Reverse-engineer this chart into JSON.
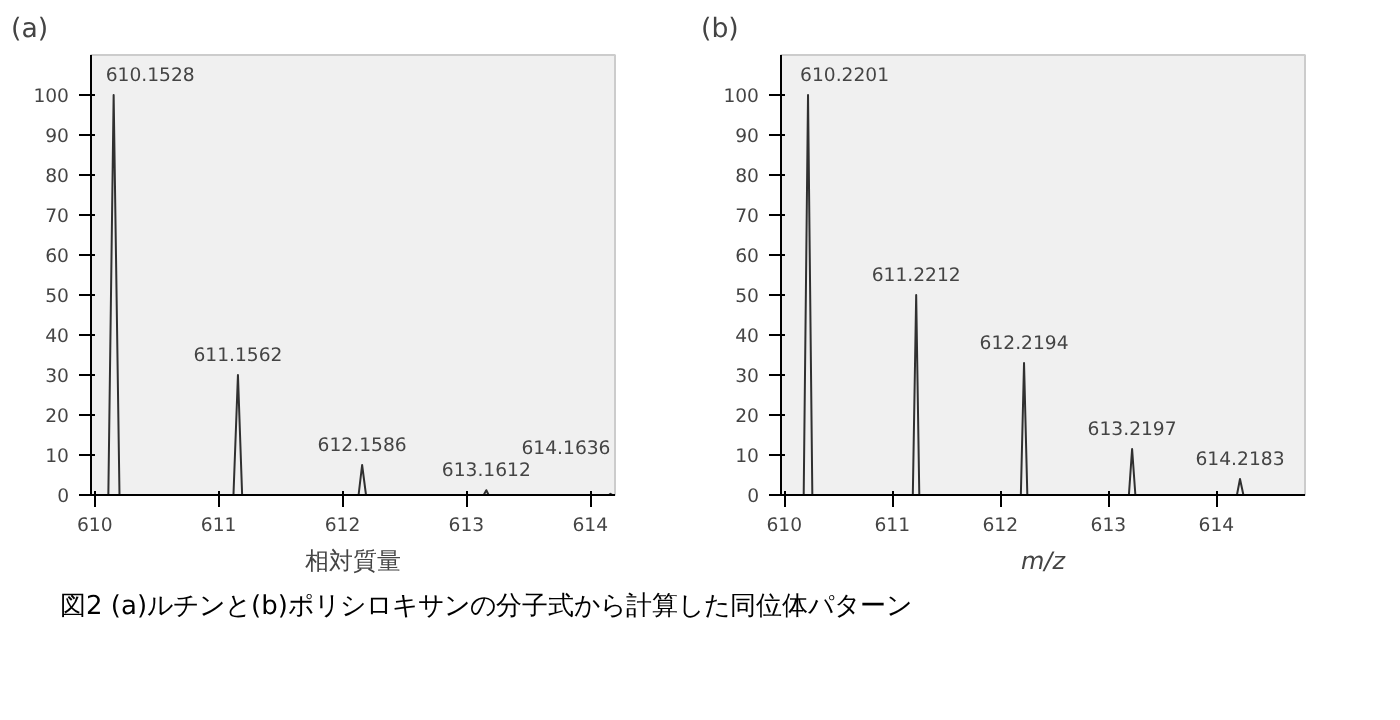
{
  "chart_data": [
    {
      "type": "line",
      "title": "(a)",
      "xlabel": "相対質量",
      "xlim": [
        609.97,
        614.2
      ],
      "xticks": [
        610,
        611,
        612,
        613,
        614
      ],
      "ylim": [
        0,
        110
      ],
      "yticks": [
        0,
        10,
        20,
        30,
        40,
        50,
        60,
        70,
        80,
        90,
        100
      ],
      "grid": false,
      "line_style": "solid",
      "marker": "none",
      "series": [
        {
          "color": "#303030",
          "x": [
            609.97,
            610.11,
            610.1528,
            610.2,
            611.12,
            611.1562,
            611.19,
            612.13,
            612.1586,
            612.19,
            613.14,
            613.1612,
            613.18,
            614.15,
            614.1636,
            614.18,
            614.2
          ],
          "values": [
            0,
            0,
            100,
            0,
            0,
            30,
            0,
            0,
            7.5,
            0,
            0,
            1.2,
            0,
            0,
            0.3,
            0,
            0
          ]
        }
      ],
      "annotations": [
        {
          "text": "610.1528",
          "x": 610.1528,
          "y": 100
        },
        {
          "text": "611.1562",
          "x": 611.1562,
          "y": 30
        },
        {
          "text": "612.1586",
          "x": 612.1586,
          "y": 7.5
        },
        {
          "text": "613.1612",
          "x": 613.1612,
          "y": 1.2
        },
        {
          "text": "614.1636",
          "x": 614.1636,
          "y": 0.3
        },
        "図2 (a)ルチンと(b)ポリシロキサンの分子式から計算した同位体パターン"
      ]
    },
    {
      "type": "line",
      "title": "(b)",
      "xlabel": "m/z",
      "xlim": [
        609.97,
        614.82
      ],
      "xticks": [
        610,
        611,
        612,
        613,
        614
      ],
      "ylim": [
        0,
        110
      ],
      "yticks": [
        0,
        10,
        20,
        30,
        40,
        50,
        60,
        70,
        80,
        90,
        100
      ],
      "grid": false,
      "line_style": "solid",
      "marker": "none",
      "series": [
        {
          "color": "#303030",
          "x": [
            609.97,
            610.18,
            610.2201,
            610.26,
            611.19,
            611.2212,
            611.25,
            612.19,
            612.2194,
            612.25,
            613.19,
            613.2197,
            613.25,
            614.19,
            614.2183,
            614.25,
            614.82
          ],
          "values": [
            0,
            0,
            100,
            0,
            0,
            50,
            0,
            0,
            33,
            0,
            0,
            11.5,
            0,
            0,
            4,
            0,
            0
          ]
        }
      ],
      "annotations": [
        {
          "text": "610.2201",
          "x": 610.2201,
          "y": 100
        },
        {
          "text": "611.2212",
          "x": 611.2212,
          "y": 50
        },
        {
          "text": "612.2194",
          "x": 612.2194,
          "y": 33
        },
        {
          "text": "613.2197",
          "x": 613.2197,
          "y": 11.5
        },
        {
          "text": "614.2183",
          "x": 614.2183,
          "y": 4
        }
      ]
    }
  ]
}
